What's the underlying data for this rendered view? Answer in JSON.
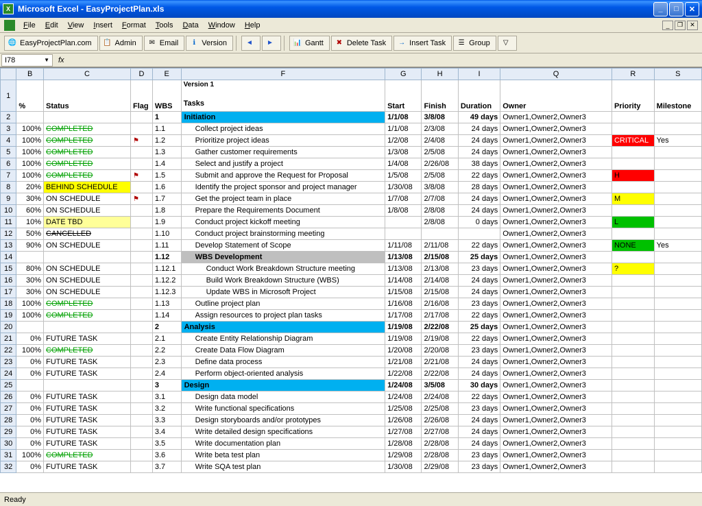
{
  "window": {
    "title": "Microsoft Excel - EasyProjectPlan.xls"
  },
  "menus": [
    "File",
    "Edit",
    "View",
    "Insert",
    "Format",
    "Tools",
    "Data",
    "Window",
    "Help"
  ],
  "toolbar": [
    {
      "icon": "🌐",
      "label": "EasyProjectPlan.com",
      "name": "easyprojectplan-button"
    },
    {
      "icon": "📋",
      "label": "Admin",
      "name": "admin-button",
      "iconColor": "#2255cc"
    },
    {
      "icon": "✉",
      "label": "Email",
      "name": "email-button"
    },
    {
      "icon": "ℹ",
      "label": "Version",
      "name": "version-button",
      "iconColor": "#0066cc"
    },
    {
      "sep": true
    },
    {
      "icon": "◄",
      "label": "",
      "name": "prev-button",
      "iconColor": "#2255cc"
    },
    {
      "icon": "►",
      "label": "",
      "name": "next-button",
      "iconColor": "#2255cc"
    },
    {
      "sep": true
    },
    {
      "icon": "📊",
      "label": "Gantt",
      "name": "gantt-button"
    },
    {
      "icon": "✖",
      "label": "Delete Task",
      "name": "delete-task-button",
      "iconColor": "#b00000"
    },
    {
      "icon": "→",
      "label": "Insert Task",
      "name": "insert-task-button",
      "iconColor": "#0066cc"
    },
    {
      "icon": "☰",
      "label": "Group",
      "name": "group-button"
    },
    {
      "icon": "▽",
      "label": "",
      "name": "filter-button"
    }
  ],
  "namebox": "I78",
  "colHeaders": [
    "B",
    "C",
    "D",
    "E",
    "F",
    "G",
    "H",
    "I",
    "Q",
    "R",
    "S"
  ],
  "sheetHeaders": {
    "pct": "%",
    "status": "Status",
    "flag": "Flag",
    "wbs": "WBS",
    "tasks": "Tasks",
    "start": "Start",
    "finish": "Finish",
    "duration": "Duration",
    "owner": "Owner",
    "priority": "Priority",
    "milestone": "Milestone",
    "version": "Version 1"
  },
  "rows": [
    {
      "n": 2,
      "wbs": "1",
      "task": "Initiation",
      "start": "1/1/08",
      "finish": "3/8/08",
      "dur": "49 days",
      "owner": "Owner1,Owner2,Owner3",
      "section": true,
      "bold": true
    },
    {
      "n": 3,
      "pct": "100%",
      "status": "COMPLETED",
      "stClass": "completed",
      "wbs": "1.1",
      "task": "Collect project ideas",
      "indent": 1,
      "start": "1/1/08",
      "finish": "2/3/08",
      "dur": "24 days",
      "owner": "Owner1,Owner2,Owner3"
    },
    {
      "n": 4,
      "pct": "100%",
      "status": "COMPLETED",
      "stClass": "completed",
      "flag": true,
      "wbs": "1.2",
      "task": "Prioritize project ideas",
      "indent": 1,
      "start": "1/2/08",
      "finish": "2/4/08",
      "dur": "24 days",
      "owner": "Owner1,Owner2,Owner3",
      "prio": "CRITICAL",
      "prioClass": "prio-critical",
      "mile": "Yes"
    },
    {
      "n": 5,
      "pct": "100%",
      "status": "COMPLETED",
      "stClass": "completed",
      "wbs": "1.3",
      "task": "Gather customer requirements",
      "indent": 1,
      "start": "1/3/08",
      "finish": "2/5/08",
      "dur": "24 days",
      "owner": "Owner1,Owner2,Owner3"
    },
    {
      "n": 6,
      "pct": "100%",
      "status": "COMPLETED",
      "stClass": "completed",
      "wbs": "1.4",
      "task": "Select and justify a project",
      "indent": 1,
      "start": "1/4/08",
      "finish": "2/26/08",
      "dur": "38 days",
      "owner": "Owner1,Owner2,Owner3"
    },
    {
      "n": 7,
      "pct": "100%",
      "status": "COMPLETED",
      "stClass": "completed",
      "flag": true,
      "wbs": "1.5",
      "task": "Submit and approve the Request for Proposal",
      "indent": 1,
      "start": "1/5/08",
      "finish": "2/5/08",
      "dur": "22 days",
      "owner": "Owner1,Owner2,Owner3",
      "prio": "H",
      "prioClass": "prio-h"
    },
    {
      "n": 8,
      "pct": "20%",
      "status": "BEHIND SCHEDULE",
      "stClass": "behind",
      "wbs": "1.6",
      "task": "Identify the project sponsor and project manager",
      "indent": 1,
      "start": "1/30/08",
      "finish": "3/8/08",
      "dur": "28 days",
      "owner": "Owner1,Owner2,Owner3"
    },
    {
      "n": 9,
      "pct": "30%",
      "status": "ON SCHEDULE",
      "flag": true,
      "wbs": "1.7",
      "task": "Get the project team in place",
      "indent": 1,
      "start": "1/7/08",
      "finish": "2/7/08",
      "dur": "24 days",
      "owner": "Owner1,Owner2,Owner3",
      "prio": "M",
      "prioClass": "prio-m"
    },
    {
      "n": 10,
      "pct": "60%",
      "status": "ON SCHEDULE",
      "wbs": "1.8",
      "task": "Prepare the Requirements Document",
      "indent": 1,
      "start": "1/8/08",
      "finish": "2/8/08",
      "dur": "24 days",
      "owner": "Owner1,Owner2,Owner3"
    },
    {
      "n": 11,
      "pct": "10%",
      "status": "DATE TBD",
      "stClass": "datetbd",
      "wbs": "1.9",
      "task": "Conduct project kickoff meeting",
      "indent": 1,
      "start": "",
      "finish": "2/8/08",
      "dur": "0 days",
      "owner": "Owner1,Owner2,Owner3",
      "prio": "L",
      "prioClass": "prio-l"
    },
    {
      "n": 12,
      "pct": "50%",
      "status": "CANCELLED",
      "stClass": "cancelled",
      "wbs": "1.10",
      "task": "Conduct project brainstorming meeting",
      "indent": 1,
      "start": "",
      "finish": "",
      "dur": "",
      "owner": "Owner1,Owner2,Owner3"
    },
    {
      "n": 13,
      "pct": "90%",
      "status": "ON SCHEDULE",
      "wbs": "1.11",
      "task": "Develop Statement of Scope",
      "indent": 1,
      "start": "1/11/08",
      "finish": "2/11/08",
      "dur": "22 days",
      "owner": "Owner1,Owner2,Owner3",
      "prio": "NONE",
      "prioClass": "prio-none",
      "mile": "Yes"
    },
    {
      "n": 14,
      "wbs": "1.12",
      "task": "WBS Development",
      "indent": 1,
      "start": "1/13/08",
      "finish": "2/15/08",
      "dur": "25 days",
      "owner": "Owner1,Owner2,Owner3",
      "sub": true,
      "bold": true
    },
    {
      "n": 15,
      "pct": "80%",
      "status": "ON SCHEDULE",
      "wbs": "1.12.1",
      "task": "Conduct Work Breakdown Structure meeting",
      "indent": 2,
      "start": "1/13/08",
      "finish": "2/13/08",
      "dur": "23 days",
      "owner": "Owner1,Owner2,Owner3",
      "prio": "?",
      "prioClass": "prio-q"
    },
    {
      "n": 16,
      "pct": "30%",
      "status": "ON SCHEDULE",
      "wbs": "1.12.2",
      "task": "Build Work Breakdown Structure (WBS)",
      "indent": 2,
      "start": "1/14/08",
      "finish": "2/14/08",
      "dur": "24 days",
      "owner": "Owner1,Owner2,Owner3"
    },
    {
      "n": 17,
      "pct": "30%",
      "status": "ON SCHEDULE",
      "wbs": "1.12.3",
      "task": "Update WBS in Microsoft Project",
      "indent": 2,
      "start": "1/15/08",
      "finish": "2/15/08",
      "dur": "24 days",
      "owner": "Owner1,Owner2,Owner3"
    },
    {
      "n": 18,
      "pct": "100%",
      "status": "COMPLETED",
      "stClass": "completed",
      "wbs": "1.13",
      "task": "Outline project plan",
      "indent": 1,
      "start": "1/16/08",
      "finish": "2/16/08",
      "dur": "23 days",
      "owner": "Owner1,Owner2,Owner3"
    },
    {
      "n": 19,
      "pct": "100%",
      "status": "COMPLETED",
      "stClass": "completed",
      "wbs": "1.14",
      "task": "Assign resources to project plan tasks",
      "indent": 1,
      "start": "1/17/08",
      "finish": "2/17/08",
      "dur": "22 days",
      "owner": "Owner1,Owner2,Owner3"
    },
    {
      "n": 20,
      "wbs": "2",
      "task": "Analysis",
      "start": "1/19/08",
      "finish": "2/22/08",
      "dur": "25 days",
      "owner": "Owner1,Owner2,Owner3",
      "section": true,
      "bold": true
    },
    {
      "n": 21,
      "pct": "0%",
      "status": "FUTURE TASK",
      "wbs": "2.1",
      "task": "Create Entity Relationship Diagram",
      "indent": 1,
      "start": "1/19/08",
      "finish": "2/19/08",
      "dur": "22 days",
      "owner": "Owner1,Owner2,Owner3"
    },
    {
      "n": 22,
      "pct": "100%",
      "status": "COMPLETED",
      "stClass": "completed",
      "wbs": "2.2",
      "task": "Create Data Flow Diagram",
      "indent": 1,
      "start": "1/20/08",
      "finish": "2/20/08",
      "dur": "23 days",
      "owner": "Owner1,Owner2,Owner3"
    },
    {
      "n": 23,
      "pct": "0%",
      "status": "FUTURE TASK",
      "wbs": "2.3",
      "task": "Define data process",
      "indent": 1,
      "start": "1/21/08",
      "finish": "2/21/08",
      "dur": "24 days",
      "owner": "Owner1,Owner2,Owner3"
    },
    {
      "n": 24,
      "pct": "0%",
      "status": "FUTURE TASK",
      "wbs": "2.4",
      "task": "Perform object-oriented analysis",
      "indent": 1,
      "start": "1/22/08",
      "finish": "2/22/08",
      "dur": "24 days",
      "owner": "Owner1,Owner2,Owner3"
    },
    {
      "n": 25,
      "wbs": "3",
      "task": "Design",
      "start": "1/24/08",
      "finish": "3/5/08",
      "dur": "30 days",
      "owner": "Owner1,Owner2,Owner3",
      "section": true,
      "bold": true
    },
    {
      "n": 26,
      "pct": "0%",
      "status": "FUTURE TASK",
      "wbs": "3.1",
      "task": "Design data model",
      "indent": 1,
      "start": "1/24/08",
      "finish": "2/24/08",
      "dur": "22 days",
      "owner": "Owner1,Owner2,Owner3"
    },
    {
      "n": 27,
      "pct": "0%",
      "status": "FUTURE TASK",
      "wbs": "3.2",
      "task": "Write functional specifications",
      "indent": 1,
      "start": "1/25/08",
      "finish": "2/25/08",
      "dur": "23 days",
      "owner": "Owner1,Owner2,Owner3"
    },
    {
      "n": 28,
      "pct": "0%",
      "status": "FUTURE TASK",
      "wbs": "3.3",
      "task": "Design storyboards and/or prototypes",
      "indent": 1,
      "start": "1/26/08",
      "finish": "2/26/08",
      "dur": "24 days",
      "owner": "Owner1,Owner2,Owner3"
    },
    {
      "n": 29,
      "pct": "0%",
      "status": "FUTURE TASK",
      "wbs": "3.4",
      "task": "Write detailed design specifications",
      "indent": 1,
      "start": "1/27/08",
      "finish": "2/27/08",
      "dur": "24 days",
      "owner": "Owner1,Owner2,Owner3"
    },
    {
      "n": 30,
      "pct": "0%",
      "status": "FUTURE TASK",
      "wbs": "3.5",
      "task": "Write documentation plan",
      "indent": 1,
      "start": "1/28/08",
      "finish": "2/28/08",
      "dur": "24 days",
      "owner": "Owner1,Owner2,Owner3"
    },
    {
      "n": 31,
      "pct": "100%",
      "status": "COMPLETED",
      "stClass": "completed",
      "wbs": "3.6",
      "task": "Write beta test plan",
      "indent": 1,
      "start": "1/29/08",
      "finish": "2/28/08",
      "dur": "23 days",
      "owner": "Owner1,Owner2,Owner3"
    },
    {
      "n": 32,
      "pct": "0%",
      "status": "FUTURE TASK",
      "wbs": "3.7",
      "task": "Write SQA test plan",
      "indent": 1,
      "start": "1/30/08",
      "finish": "2/29/08",
      "dur": "23 days",
      "owner": "Owner1,Owner2,Owner3"
    }
  ],
  "status": "Ready"
}
